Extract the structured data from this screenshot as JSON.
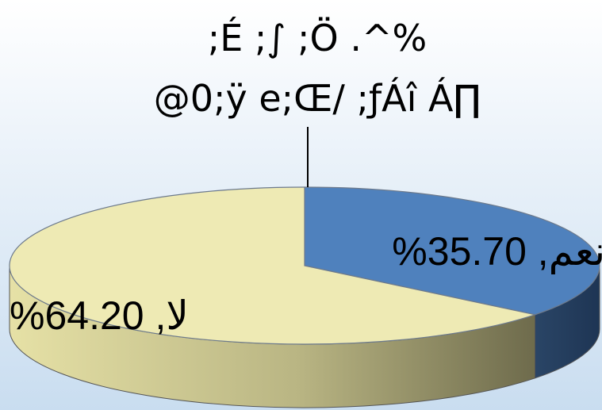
{
  "chart_data": {
    "type": "pie",
    "style": "3d",
    "title_lines": [
      ";É ;∫ ;Ö .^%",
      "@0;ÿ e;Œ/ ;ƒÁî Á∏"
    ],
    "slices": [
      {
        "category": "نعم",
        "value": 35.7,
        "label": "%35.70 ,نعم",
        "color": "#4F81BD"
      },
      {
        "category": "لا",
        "value": 64.2,
        "label": "%64.20 ,لا",
        "color": "#EEEAB4"
      }
    ],
    "legend": "none",
    "background_colors": {
      "top": "#FFFFFF",
      "bottom": "#C9DDF0"
    }
  }
}
